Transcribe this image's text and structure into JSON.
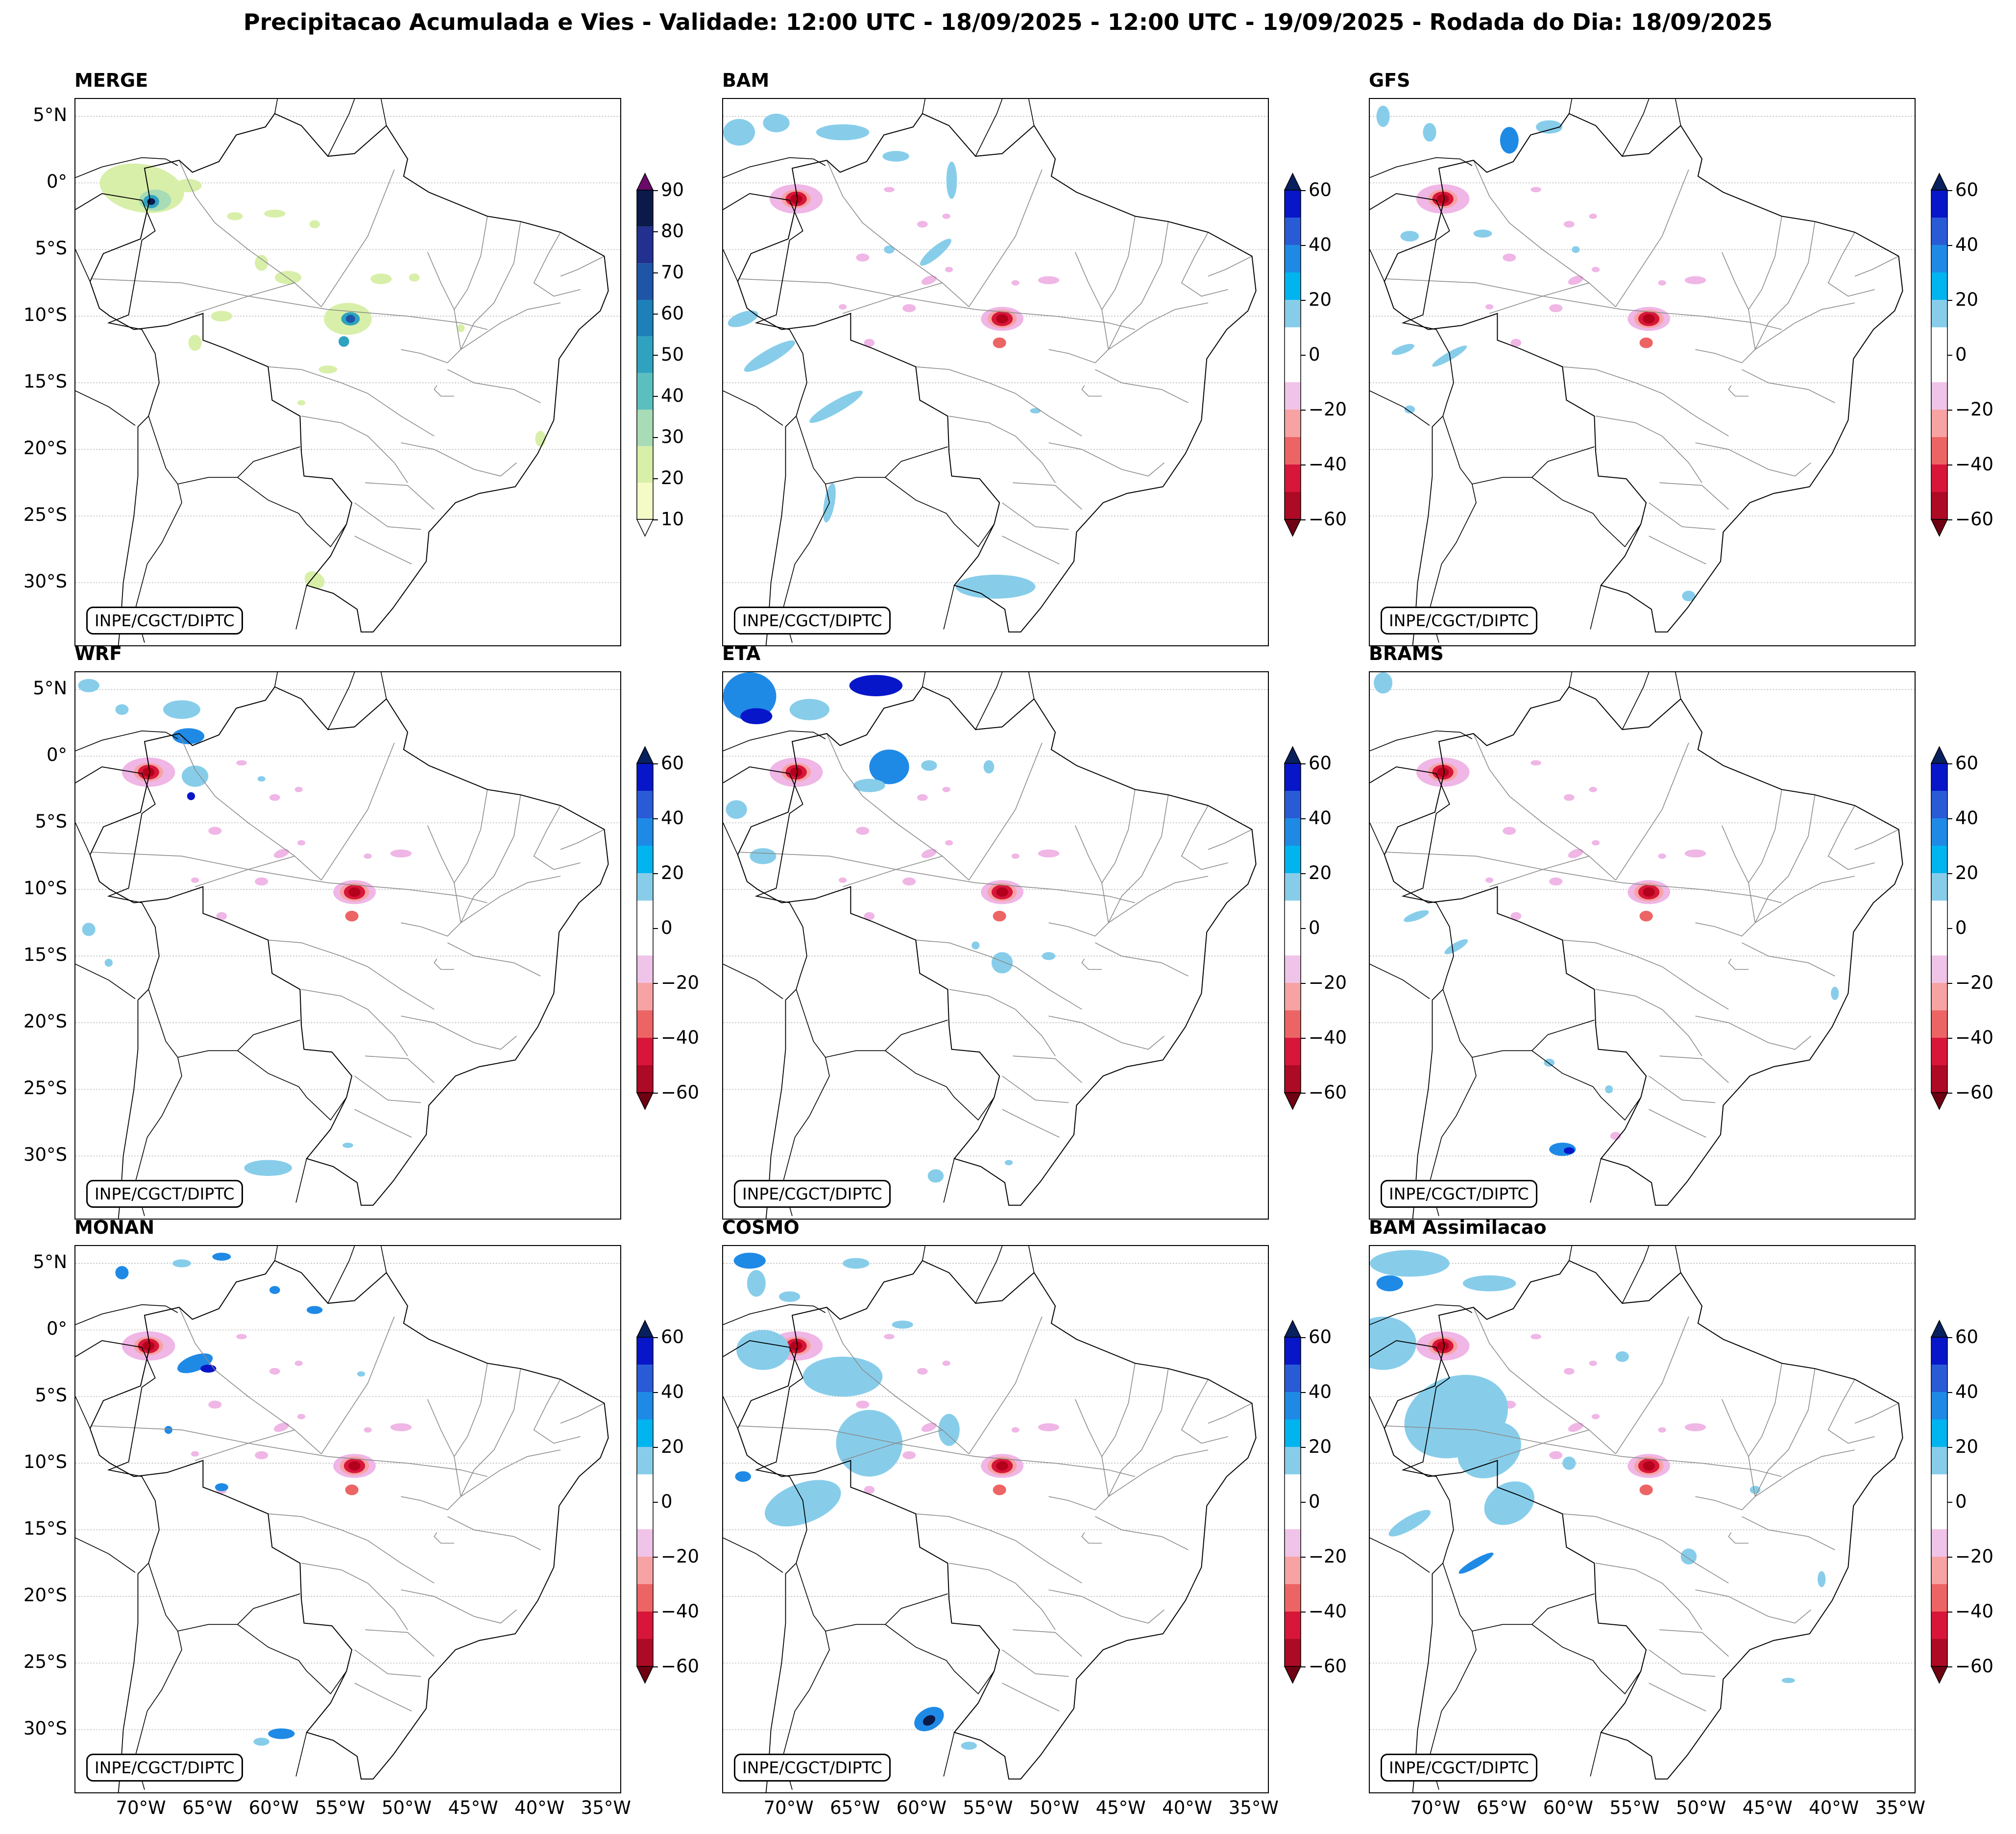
{
  "figure": {
    "title": "Precipitacao Acumulada e Vies - Validade: 12:00 UTC - 18/09/2025 - 12:00 UTC - 19/09/2025 - Rodada do Dia: 18/09/2025"
  },
  "credit": "INPE/CGCT/DIPTC",
  "axes": {
    "lat_labels": [
      "5°N",
      "0°",
      "5°S",
      "10°S",
      "15°S",
      "20°S",
      "25°S",
      "30°S"
    ],
    "lon_labels": [
      "70°W",
      "65°W",
      "60°W",
      "55°W",
      "50°W",
      "45°W",
      "40°W",
      "35°W"
    ]
  },
  "colorbars": {
    "precip": {
      "ticks": [
        "90",
        "80",
        "70",
        "60",
        "50",
        "40",
        "30",
        "20",
        "10"
      ],
      "colors": [
        "#0c1a4a",
        "#22318f",
        "#1f55a6",
        "#1d80b8",
        "#2fa2c0",
        "#5cbfbf",
        "#a7dcb6",
        "#d8efa9",
        "#f5fbc6"
      ],
      "extend_top": "#6a0b6a"
    },
    "bias": {
      "ticks": [
        "60",
        "40",
        "20",
        "0",
        "−20",
        "−40",
        "−60"
      ],
      "colors": [
        "#0716c8",
        "#2a5bd6",
        "#1f8ae6",
        "#00b4f0",
        "#87cdea",
        "#ffffff",
        "#ffffff",
        "#f0c4e8",
        "#f7a3a3",
        "#ed6464",
        "#d8163a",
        "#ad0a25"
      ],
      "extend_top": "#08205e",
      "extend_bottom": "#6e0212"
    }
  },
  "panels": [
    {
      "title": "MERGE",
      "colorbar": "precip"
    },
    {
      "title": "BAM",
      "colorbar": "bias"
    },
    {
      "title": "GFS",
      "colorbar": "bias"
    },
    {
      "title": "WRF",
      "colorbar": "bias"
    },
    {
      "title": "ETA",
      "colorbar": "bias"
    },
    {
      "title": "BRAMS",
      "colorbar": "bias"
    },
    {
      "title": "MONAN",
      "colorbar": "bias"
    },
    {
      "title": "COSMO",
      "colorbar": "bias"
    },
    {
      "title": "BAM Assimilacao",
      "colorbar": "bias"
    }
  ],
  "colors": {
    "red_core": "#b3001b",
    "pink": "#efb6e6",
    "light_blue": "#87cdea",
    "blue": "#1f8ae6",
    "green_light": "#d8efa9",
    "teal": "#2fa2c0"
  }
}
